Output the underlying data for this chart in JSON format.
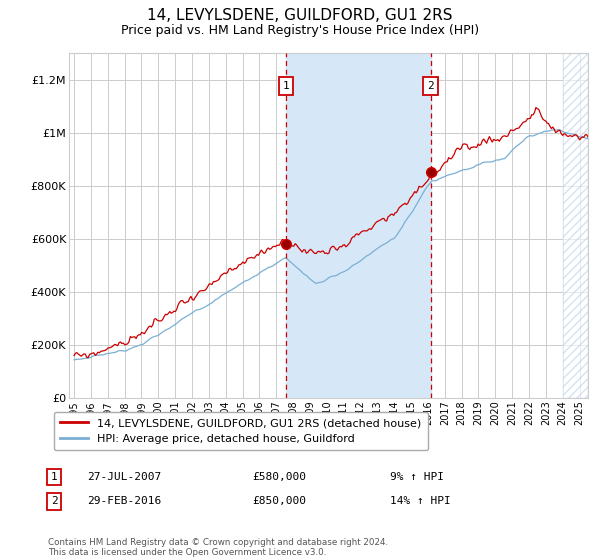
{
  "title": "14, LEVYLSDENE, GUILDFORD, GU1 2RS",
  "subtitle": "Price paid vs. HM Land Registry's House Price Index (HPI)",
  "ylabel_ticks": [
    "£0",
    "£200K",
    "£400K",
    "£600K",
    "£800K",
    "£1M",
    "£1.2M"
  ],
  "ytick_values": [
    0,
    200000,
    400000,
    600000,
    800000,
    1000000,
    1200000
  ],
  "ylim": [
    0,
    1300000
  ],
  "xlim_start": 1994.7,
  "xlim_end": 2025.5,
  "purchase1_year": 2007.57,
  "purchase1_price": 580000,
  "purchase2_year": 2016.16,
  "purchase2_price": 850000,
  "shade_color": "#d6e8f7",
  "hatch_start": 2024.0,
  "line_color_property": "#cc0000",
  "line_color_hpi": "#7aafd4",
  "background_color": "#ffffff",
  "grid_color": "#cccccc",
  "legend_label1": "14, LEVYLSDENE, GUILDFORD, GU1 2RS (detached house)",
  "legend_label2": "HPI: Average price, detached house, Guildford",
  "annotation1_label": "1",
  "annotation2_label": "2",
  "annotation1_date": "27-JUL-2007",
  "annotation1_price": "£580,000",
  "annotation1_hpi": "9% ↑ HPI",
  "annotation2_date": "29-FEB-2016",
  "annotation2_price": "£850,000",
  "annotation2_hpi": "14% ↑ HPI",
  "footer": "Contains HM Land Registry data © Crown copyright and database right 2024.\nThis data is licensed under the Open Government Licence v3.0.",
  "title_fontsize": 11,
  "subtitle_fontsize": 9
}
